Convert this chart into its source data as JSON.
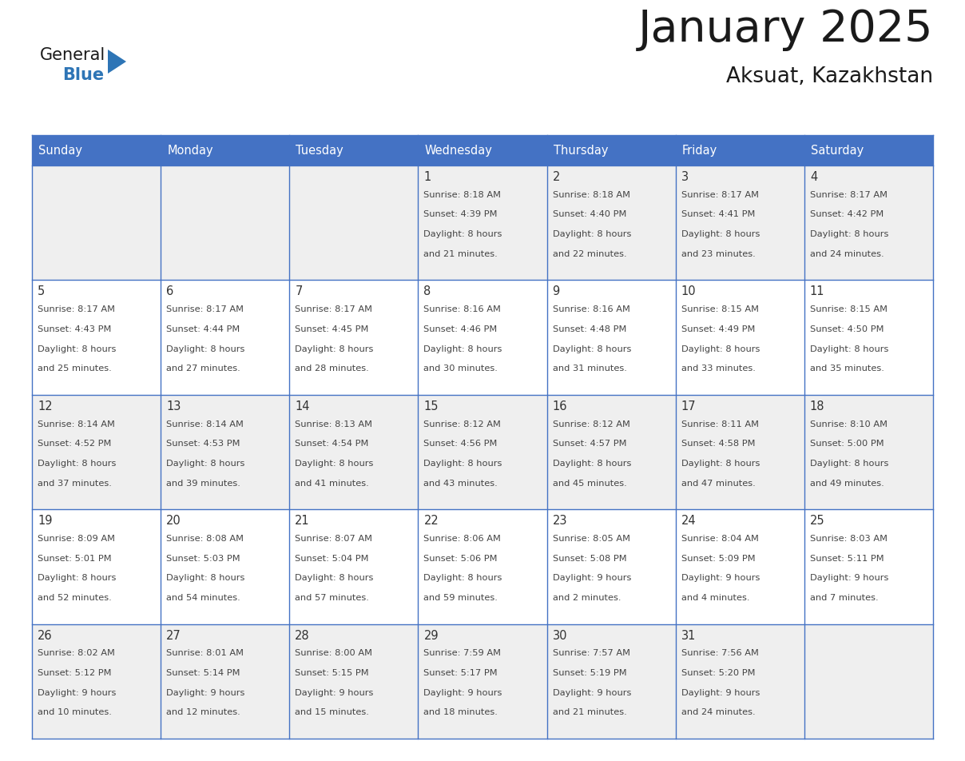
{
  "title": "January 2025",
  "subtitle": "Aksuat, Kazakhstan",
  "days_of_week": [
    "Sunday",
    "Monday",
    "Tuesday",
    "Wednesday",
    "Thursday",
    "Friday",
    "Saturday"
  ],
  "header_bg": "#4472C4",
  "header_text_color": "#FFFFFF",
  "cell_bg_white": "#FFFFFF",
  "cell_bg_light": "#EFEFEF",
  "border_color": "#4472C4",
  "grid_line_color": "#4472C4",
  "text_color": "#444444",
  "day_num_color": "#333333",
  "logo_general_color": "#1a1a1a",
  "logo_blue_color": "#2E75B6",
  "calendar_data": [
    {
      "day": 1,
      "col": 3,
      "row": 0,
      "sunrise": "8:18 AM",
      "sunset": "4:39 PM",
      "daylight_h": "8 hours",
      "daylight_m": "21 minutes."
    },
    {
      "day": 2,
      "col": 4,
      "row": 0,
      "sunrise": "8:18 AM",
      "sunset": "4:40 PM",
      "daylight_h": "8 hours",
      "daylight_m": "22 minutes."
    },
    {
      "day": 3,
      "col": 5,
      "row": 0,
      "sunrise": "8:17 AM",
      "sunset": "4:41 PM",
      "daylight_h": "8 hours",
      "daylight_m": "23 minutes."
    },
    {
      "day": 4,
      "col": 6,
      "row": 0,
      "sunrise": "8:17 AM",
      "sunset": "4:42 PM",
      "daylight_h": "8 hours",
      "daylight_m": "24 minutes."
    },
    {
      "day": 5,
      "col": 0,
      "row": 1,
      "sunrise": "8:17 AM",
      "sunset": "4:43 PM",
      "daylight_h": "8 hours",
      "daylight_m": "25 minutes."
    },
    {
      "day": 6,
      "col": 1,
      "row": 1,
      "sunrise": "8:17 AM",
      "sunset": "4:44 PM",
      "daylight_h": "8 hours",
      "daylight_m": "27 minutes."
    },
    {
      "day": 7,
      "col": 2,
      "row": 1,
      "sunrise": "8:17 AM",
      "sunset": "4:45 PM",
      "daylight_h": "8 hours",
      "daylight_m": "28 minutes."
    },
    {
      "day": 8,
      "col": 3,
      "row": 1,
      "sunrise": "8:16 AM",
      "sunset": "4:46 PM",
      "daylight_h": "8 hours",
      "daylight_m": "30 minutes."
    },
    {
      "day": 9,
      "col": 4,
      "row": 1,
      "sunrise": "8:16 AM",
      "sunset": "4:48 PM",
      "daylight_h": "8 hours",
      "daylight_m": "31 minutes."
    },
    {
      "day": 10,
      "col": 5,
      "row": 1,
      "sunrise": "8:15 AM",
      "sunset": "4:49 PM",
      "daylight_h": "8 hours",
      "daylight_m": "33 minutes."
    },
    {
      "day": 11,
      "col": 6,
      "row": 1,
      "sunrise": "8:15 AM",
      "sunset": "4:50 PM",
      "daylight_h": "8 hours",
      "daylight_m": "35 minutes."
    },
    {
      "day": 12,
      "col": 0,
      "row": 2,
      "sunrise": "8:14 AM",
      "sunset": "4:52 PM",
      "daylight_h": "8 hours",
      "daylight_m": "37 minutes."
    },
    {
      "day": 13,
      "col": 1,
      "row": 2,
      "sunrise": "8:14 AM",
      "sunset": "4:53 PM",
      "daylight_h": "8 hours",
      "daylight_m": "39 minutes."
    },
    {
      "day": 14,
      "col": 2,
      "row": 2,
      "sunrise": "8:13 AM",
      "sunset": "4:54 PM",
      "daylight_h": "8 hours",
      "daylight_m": "41 minutes."
    },
    {
      "day": 15,
      "col": 3,
      "row": 2,
      "sunrise": "8:12 AM",
      "sunset": "4:56 PM",
      "daylight_h": "8 hours",
      "daylight_m": "43 minutes."
    },
    {
      "day": 16,
      "col": 4,
      "row": 2,
      "sunrise": "8:12 AM",
      "sunset": "4:57 PM",
      "daylight_h": "8 hours",
      "daylight_m": "45 minutes."
    },
    {
      "day": 17,
      "col": 5,
      "row": 2,
      "sunrise": "8:11 AM",
      "sunset": "4:58 PM",
      "daylight_h": "8 hours",
      "daylight_m": "47 minutes."
    },
    {
      "day": 18,
      "col": 6,
      "row": 2,
      "sunrise": "8:10 AM",
      "sunset": "5:00 PM",
      "daylight_h": "8 hours",
      "daylight_m": "49 minutes."
    },
    {
      "day": 19,
      "col": 0,
      "row": 3,
      "sunrise": "8:09 AM",
      "sunset": "5:01 PM",
      "daylight_h": "8 hours",
      "daylight_m": "52 minutes."
    },
    {
      "day": 20,
      "col": 1,
      "row": 3,
      "sunrise": "8:08 AM",
      "sunset": "5:03 PM",
      "daylight_h": "8 hours",
      "daylight_m": "54 minutes."
    },
    {
      "day": 21,
      "col": 2,
      "row": 3,
      "sunrise": "8:07 AM",
      "sunset": "5:04 PM",
      "daylight_h": "8 hours",
      "daylight_m": "57 minutes."
    },
    {
      "day": 22,
      "col": 3,
      "row": 3,
      "sunrise": "8:06 AM",
      "sunset": "5:06 PM",
      "daylight_h": "8 hours",
      "daylight_m": "59 minutes."
    },
    {
      "day": 23,
      "col": 4,
      "row": 3,
      "sunrise": "8:05 AM",
      "sunset": "5:08 PM",
      "daylight_h": "9 hours",
      "daylight_m": "2 minutes."
    },
    {
      "day": 24,
      "col": 5,
      "row": 3,
      "sunrise": "8:04 AM",
      "sunset": "5:09 PM",
      "daylight_h": "9 hours",
      "daylight_m": "4 minutes."
    },
    {
      "day": 25,
      "col": 6,
      "row": 3,
      "sunrise": "8:03 AM",
      "sunset": "5:11 PM",
      "daylight_h": "9 hours",
      "daylight_m": "7 minutes."
    },
    {
      "day": 26,
      "col": 0,
      "row": 4,
      "sunrise": "8:02 AM",
      "sunset": "5:12 PM",
      "daylight_h": "9 hours",
      "daylight_m": "10 minutes."
    },
    {
      "day": 27,
      "col": 1,
      "row": 4,
      "sunrise": "8:01 AM",
      "sunset": "5:14 PM",
      "daylight_h": "9 hours",
      "daylight_m": "12 minutes."
    },
    {
      "day": 28,
      "col": 2,
      "row": 4,
      "sunrise": "8:00 AM",
      "sunset": "5:15 PM",
      "daylight_h": "9 hours",
      "daylight_m": "15 minutes."
    },
    {
      "day": 29,
      "col": 3,
      "row": 4,
      "sunrise": "7:59 AM",
      "sunset": "5:17 PM",
      "daylight_h": "9 hours",
      "daylight_m": "18 minutes."
    },
    {
      "day": 30,
      "col": 4,
      "row": 4,
      "sunrise": "7:57 AM",
      "sunset": "5:19 PM",
      "daylight_h": "9 hours",
      "daylight_m": "21 minutes."
    },
    {
      "day": 31,
      "col": 5,
      "row": 4,
      "sunrise": "7:56 AM",
      "sunset": "5:20 PM",
      "daylight_h": "9 hours",
      "daylight_m": "24 minutes."
    }
  ]
}
